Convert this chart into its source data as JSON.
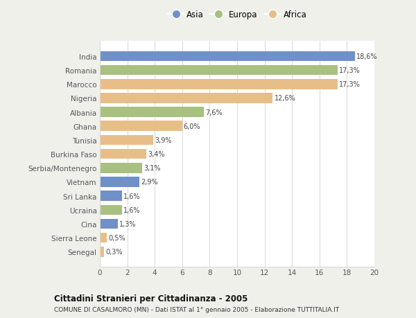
{
  "countries": [
    "India",
    "Romania",
    "Marocco",
    "Nigeria",
    "Albania",
    "Ghana",
    "Tunisia",
    "Burkina Faso",
    "Serbia/Montenegro",
    "Vietnam",
    "Sri Lanka",
    "Ucraina",
    "Cina",
    "Sierra Leone",
    "Senegal"
  ],
  "values": [
    18.6,
    17.3,
    17.3,
    12.6,
    7.6,
    6.0,
    3.9,
    3.4,
    3.1,
    2.9,
    1.6,
    1.6,
    1.3,
    0.5,
    0.3
  ],
  "continents": [
    "Asia",
    "Europa",
    "Africa",
    "Africa",
    "Europa",
    "Africa",
    "Africa",
    "Africa",
    "Europa",
    "Asia",
    "Asia",
    "Europa",
    "Asia",
    "Africa",
    "Africa"
  ],
  "labels": [
    "18,6%",
    "17,3%",
    "17,3%",
    "12,6%",
    "7,6%",
    "6,0%",
    "3,9%",
    "3,4%",
    "3,1%",
    "2,9%",
    "1,6%",
    "1,6%",
    "1,3%",
    "0,5%",
    "0,3%"
  ],
  "colors": {
    "Asia": "#7090c8",
    "Europa": "#a8c080",
    "Africa": "#e8be88"
  },
  "xlim": [
    0,
    20
  ],
  "xticks": [
    0,
    2,
    4,
    6,
    8,
    10,
    12,
    14,
    16,
    18,
    20
  ],
  "title": "Cittadini Stranieri per Cittadinanza - 2005",
  "subtitle": "COMUNE DI CASALMORO (MN) - Dati ISTAT al 1° gennaio 2005 - Elaborazione TUTTITALIA.IT",
  "bg_color": "#f0f0eb",
  "plot_bg": "#ffffff",
  "grid_color": "#d8d8d8",
  "text_color": "#555555",
  "label_color": "#444444"
}
